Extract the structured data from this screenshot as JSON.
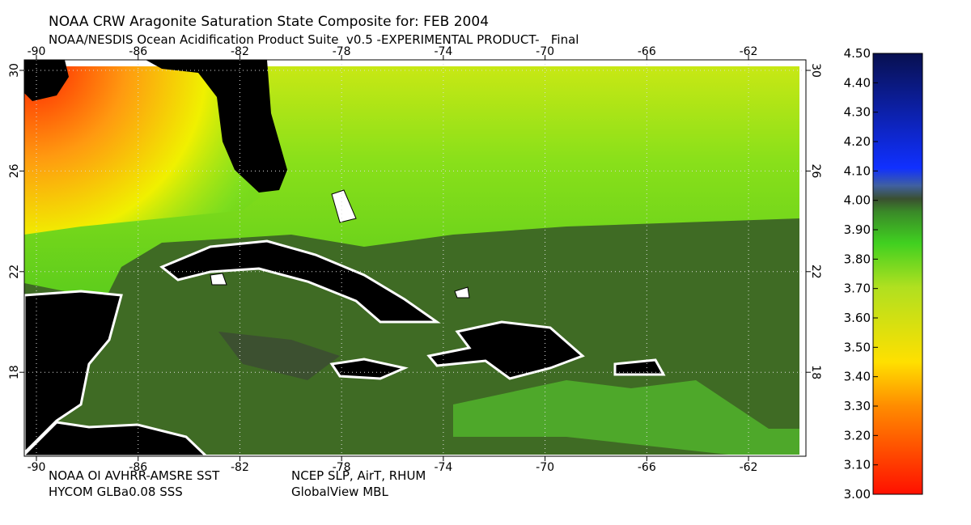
{
  "title": "NOAA CRW Aragonite Saturation State Composite for: FEB 2004",
  "subtitle": "NOAA/NESDIS Ocean Acidification Product Suite  v0.5 -EXPERIMENTAL PRODUCT-   Final",
  "lon_ticks": [
    -90,
    -86,
    -82,
    -78,
    -74,
    -70,
    -66,
    -62
  ],
  "lat_ticks": [
    30,
    26,
    22,
    18
  ],
  "colorbar_ticks": [
    {
      "value": 3,
      "label": "3.00"
    },
    {
      "value": 3.1,
      "label": "3.10"
    },
    {
      "value": 3.2,
      "label": "3.20"
    },
    {
      "value": 3.3,
      "label": "3.30"
    },
    {
      "value": 3.4,
      "label": "3.40"
    },
    {
      "value": 3.5,
      "label": "3.50"
    },
    {
      "value": 3.6,
      "label": "3.60"
    },
    {
      "value": 3.7,
      "label": "3.70"
    },
    {
      "value": 3.8,
      "label": "3.80"
    },
    {
      "value": 3.9,
      "label": "3.90"
    },
    {
      "value": 4,
      "label": "4.00"
    },
    {
      "value": 4.1,
      "label": "4.10"
    },
    {
      "value": 4.2,
      "label": "4.20"
    },
    {
      "value": 4.3,
      "label": "4.30"
    },
    {
      "value": 4.4,
      "label": "4.40"
    },
    {
      "value": 4.5,
      "label": "4.50"
    }
  ],
  "credits": {
    "sst": "NOAA OI AVHRR-AMSRE SST",
    "met": "NCEP SLP, AirT, RHUM",
    "sss": "HYCOM GLBa0.08 SSS",
    "co2": "GlobalView MBL"
  }
}
